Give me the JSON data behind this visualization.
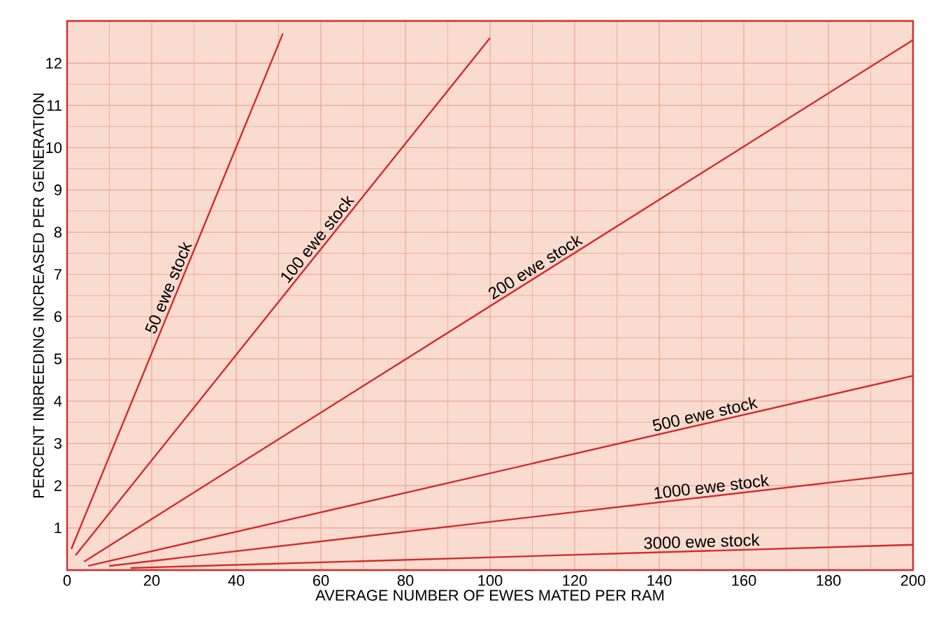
{
  "chart_data": {
    "type": "line",
    "xlabel": "AVERAGE NUMBER OF EWES MATED PER RAM",
    "ylabel": "PERCENT INBREEDING INCREASED PER GENERATION",
    "xlim": [
      0,
      200
    ],
    "ylim": [
      0,
      13
    ],
    "xticks": [
      0,
      20,
      40,
      60,
      80,
      100,
      120,
      140,
      160,
      180,
      200
    ],
    "yticks": [
      1,
      2,
      3,
      4,
      5,
      6,
      7,
      8,
      9,
      10,
      11,
      12
    ],
    "grid": true,
    "marker": "none",
    "line_style": "solid",
    "series": [
      {
        "name": "50 ewe stock",
        "color": "#d42a2a",
        "x": [
          1,
          51
        ],
        "values": [
          0.5,
          12.7
        ]
      },
      {
        "name": "100 ewe stock",
        "color": "#d42a2a",
        "x": [
          2,
          100
        ],
        "values": [
          0.35,
          12.6
        ]
      },
      {
        "name": "200 ewe stock",
        "color": "#d42a2a",
        "x": [
          4,
          200
        ],
        "values": [
          0.2,
          12.55
        ]
      },
      {
        "name": "500 ewe stock",
        "color": "#d42a2a",
        "x": [
          5,
          200
        ],
        "values": [
          0.1,
          4.6
        ]
      },
      {
        "name": "1000 ewe stock",
        "color": "#d42a2a",
        "x": [
          10,
          200
        ],
        "values": [
          0.1,
          2.3
        ]
      },
      {
        "name": "3000 ewe stock",
        "color": "#d42a2a",
        "x": [
          15,
          200
        ],
        "values": [
          0.05,
          0.6
        ]
      }
    ]
  }
}
